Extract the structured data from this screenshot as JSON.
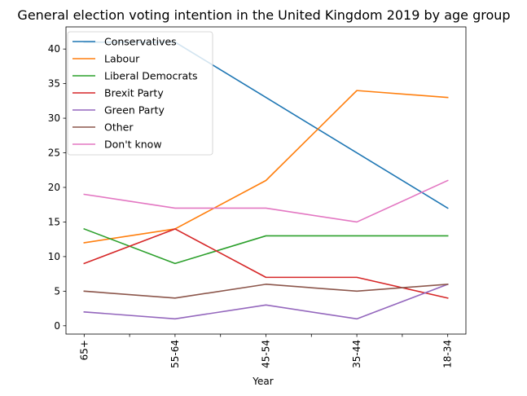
{
  "chart_data": {
    "type": "line",
    "title": "General election voting intention in the United Kingdom 2019 by age group",
    "xlabel": "Year",
    "ylabel": "",
    "categories": [
      "65+",
      "55-64",
      "45-54",
      "35-44",
      "18-34"
    ],
    "ylim": [
      -1.2,
      43.2
    ],
    "yticks": [
      0,
      5,
      10,
      15,
      20,
      25,
      30,
      35,
      40
    ],
    "grid": false,
    "legend_position": "top-left",
    "series": [
      {
        "name": "Conservatives",
        "color": "#1f77b4",
        "values": [
          41,
          41,
          33,
          25,
          17
        ]
      },
      {
        "name": "Labour",
        "color": "#ff7f0e",
        "values": [
          12,
          14,
          21,
          34,
          33
        ]
      },
      {
        "name": "Liberal Democrats",
        "color": "#2ca02c",
        "values": [
          14,
          9,
          13,
          13,
          13
        ]
      },
      {
        "name": "Brexit Party",
        "color": "#d62728",
        "values": [
          9,
          14,
          7,
          7,
          4
        ]
      },
      {
        "name": "Green Party",
        "color": "#9467bd",
        "values": [
          2,
          1,
          3,
          1,
          6
        ]
      },
      {
        "name": "Other",
        "color": "#8c564b",
        "values": [
          5,
          4,
          6,
          5,
          6
        ]
      },
      {
        "name": "Don't know",
        "color": "#e377c2",
        "values": [
          19,
          17,
          17,
          15,
          21
        ]
      }
    ]
  }
}
